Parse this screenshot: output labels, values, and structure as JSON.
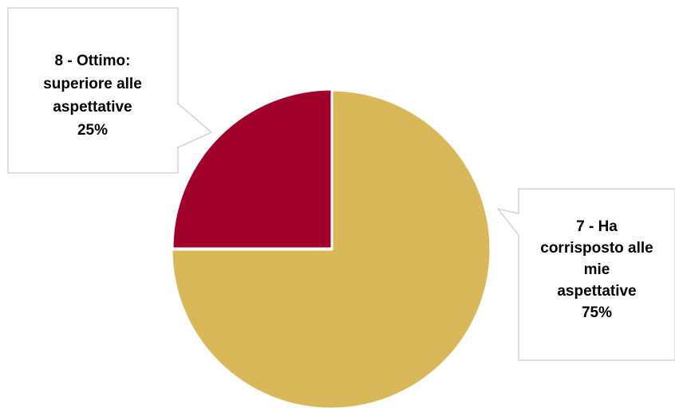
{
  "chart_data": {
    "type": "pie",
    "title": "",
    "slices": [
      {
        "label_lines": [
          "7 - Ha",
          "corrisposto alle",
          "mie",
          "aspettative"
        ],
        "value": 75,
        "value_label": "75%",
        "color": "#D9B85A"
      },
      {
        "label_lines": [
          "8 - Ottimo:",
          "superiore alle",
          "aspettative"
        ],
        "value": 25,
        "value_label": "25%",
        "color": "#A1002B"
      }
    ],
    "start": "12 o'clock",
    "direction": "clockwise",
    "exploded_slice": "8 - Ottimo",
    "legend": "none",
    "labels": "callouts"
  }
}
